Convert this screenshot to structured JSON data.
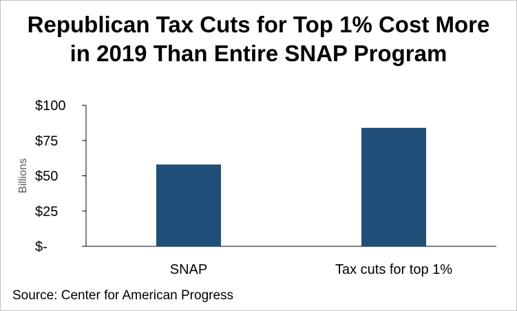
{
  "chart_data": {
    "type": "bar",
    "title_lines": [
      "Republican Tax Cuts for Top 1% Cost More",
      "in 2019 Than Entire SNAP Program"
    ],
    "xlabel": "",
    "ylabel": "Billions",
    "categories": [
      "SNAP",
      "Tax cuts for top 1%"
    ],
    "values": [
      58,
      84
    ],
    "ylim": [
      0,
      100
    ],
    "yticks": [
      0,
      25,
      50,
      75,
      100
    ],
    "ytick_labels": [
      "$-",
      "$25",
      "$50",
      "$75",
      "$100"
    ],
    "bar_color": "#1f4e79",
    "grid": false,
    "legend": "none"
  },
  "source": "Source: Center for American Progress"
}
